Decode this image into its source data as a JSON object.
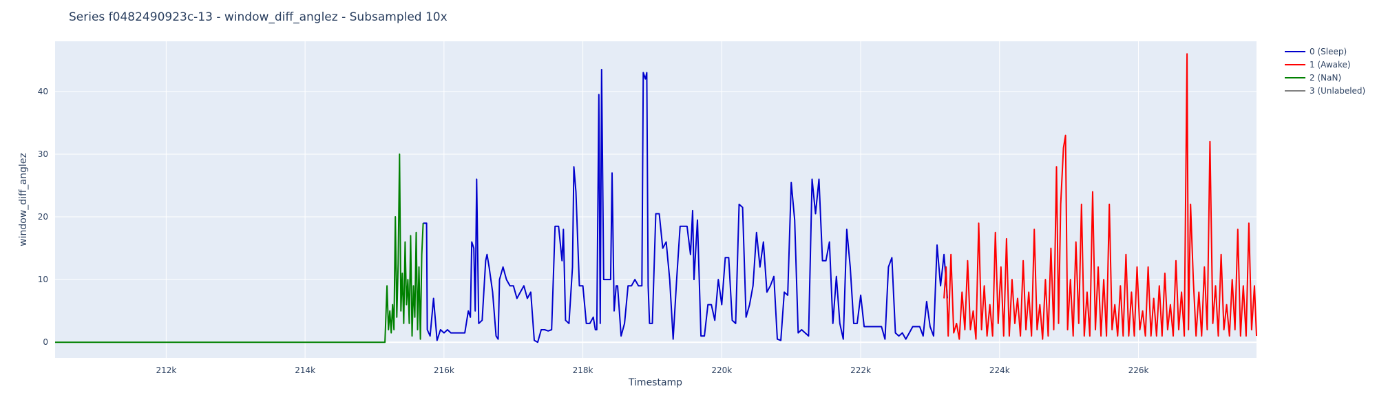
{
  "chart_data": {
    "type": "line",
    "title": "Series f0482490923c-13 - window_diff_anglez - Subsampled 10x",
    "xlabel": "Timestamp",
    "ylabel": "window_diff_anglez",
    "xlim": [
      210400,
      227700
    ],
    "ylim": [
      -2.5,
      48
    ],
    "x_ticks": [
      212000,
      214000,
      216000,
      218000,
      220000,
      222000,
      224000,
      226000
    ],
    "x_tick_labels": [
      "212k",
      "214k",
      "216k",
      "218k",
      "220k",
      "222k",
      "224k",
      "226k"
    ],
    "y_ticks": [
      0,
      10,
      20,
      30,
      40
    ],
    "y_tick_labels": [
      "0",
      "10",
      "20",
      "30",
      "40"
    ],
    "grid": true,
    "legend_position": "top-right",
    "series": [
      {
        "name": "0 (Sleep)",
        "color": "#0000cc",
        "points": [
          [
            215700,
            19
          ],
          [
            215750,
            19
          ],
          [
            215760,
            2
          ],
          [
            215800,
            1
          ],
          [
            215850,
            7
          ],
          [
            215900,
            0.3
          ],
          [
            215950,
            2
          ],
          [
            216000,
            1.5
          ],
          [
            216050,
            2
          ],
          [
            216100,
            1.5
          ],
          [
            216300,
            1.5
          ],
          [
            216350,
            5
          ],
          [
            216380,
            4
          ],
          [
            216400,
            16
          ],
          [
            216430,
            15
          ],
          [
            216450,
            5
          ],
          [
            216470,
            26
          ],
          [
            216500,
            3
          ],
          [
            216550,
            3.5
          ],
          [
            216600,
            13
          ],
          [
            216620,
            14
          ],
          [
            216650,
            12
          ],
          [
            216700,
            8
          ],
          [
            216750,
            1
          ],
          [
            216780,
            0.5
          ],
          [
            216800,
            10
          ],
          [
            216850,
            12
          ],
          [
            216900,
            10
          ],
          [
            216950,
            9
          ],
          [
            217000,
            9
          ],
          [
            217050,
            7
          ],
          [
            217100,
            8
          ],
          [
            217150,
            9
          ],
          [
            217200,
            7
          ],
          [
            217250,
            8
          ],
          [
            217300,
            0.3
          ],
          [
            217350,
            0
          ],
          [
            217400,
            2
          ],
          [
            217450,
            2
          ],
          [
            217500,
            1.8
          ],
          [
            217550,
            2
          ],
          [
            217600,
            18.5
          ],
          [
            217650,
            18.5
          ],
          [
            217700,
            13
          ],
          [
            217720,
            18
          ],
          [
            217750,
            3.5
          ],
          [
            217800,
            3
          ],
          [
            217850,
            12
          ],
          [
            217870,
            28
          ],
          [
            217900,
            24
          ],
          [
            217950,
            9
          ],
          [
            218000,
            9
          ],
          [
            218050,
            3
          ],
          [
            218100,
            3
          ],
          [
            218150,
            4
          ],
          [
            218180,
            2
          ],
          [
            218200,
            2
          ],
          [
            218230,
            39.5
          ],
          [
            218250,
            3
          ],
          [
            218270,
            43.5
          ],
          [
            218300,
            10
          ],
          [
            218350,
            10
          ],
          [
            218400,
            10
          ],
          [
            218420,
            27
          ],
          [
            218450,
            5
          ],
          [
            218480,
            9
          ],
          [
            218500,
            9
          ],
          [
            218550,
            1
          ],
          [
            218600,
            3
          ],
          [
            218650,
            9
          ],
          [
            218700,
            9
          ],
          [
            218750,
            10
          ],
          [
            218800,
            9
          ],
          [
            218850,
            9
          ],
          [
            218870,
            43
          ],
          [
            218900,
            42
          ],
          [
            218920,
            43
          ],
          [
            218940,
            9
          ],
          [
            218960,
            3
          ],
          [
            219000,
            3
          ],
          [
            219050,
            20.5
          ],
          [
            219100,
            20.5
          ],
          [
            219150,
            15
          ],
          [
            219200,
            16
          ],
          [
            219250,
            10
          ],
          [
            219300,
            0.5
          ],
          [
            219350,
            10
          ],
          [
            219400,
            18.5
          ],
          [
            219450,
            18.5
          ],
          [
            219500,
            18.5
          ],
          [
            219550,
            14
          ],
          [
            219580,
            21
          ],
          [
            219600,
            10
          ],
          [
            219650,
            19.5
          ],
          [
            219700,
            1
          ],
          [
            219750,
            1
          ],
          [
            219800,
            6
          ],
          [
            219850,
            6
          ],
          [
            219900,
            3.5
          ],
          [
            219950,
            10
          ],
          [
            220000,
            6
          ],
          [
            220050,
            13.5
          ],
          [
            220100,
            13.5
          ],
          [
            220150,
            3.5
          ],
          [
            220200,
            3
          ],
          [
            220250,
            22
          ],
          [
            220300,
            21.5
          ],
          [
            220350,
            4
          ],
          [
            220400,
            6
          ],
          [
            220450,
            9
          ],
          [
            220500,
            17.5
          ],
          [
            220550,
            12
          ],
          [
            220600,
            16
          ],
          [
            220650,
            8
          ],
          [
            220700,
            9
          ],
          [
            220750,
            10.5
          ],
          [
            220800,
            0.5
          ],
          [
            220850,
            0.3
          ],
          [
            220900,
            8
          ],
          [
            220950,
            7.5
          ],
          [
            221000,
            25.5
          ],
          [
            221050,
            19.5
          ],
          [
            221100,
            1.5
          ],
          [
            221150,
            2
          ],
          [
            221200,
            1.5
          ],
          [
            221250,
            1
          ],
          [
            221300,
            26
          ],
          [
            221350,
            20.5
          ],
          [
            221400,
            26
          ],
          [
            221450,
            13
          ],
          [
            221500,
            13
          ],
          [
            221550,
            16
          ],
          [
            221600,
            3
          ],
          [
            221650,
            10.5
          ],
          [
            221700,
            3
          ],
          [
            221750,
            0.5
          ],
          [
            221800,
            18
          ],
          [
            221850,
            12
          ],
          [
            221900,
            3
          ],
          [
            221950,
            3
          ],
          [
            222000,
            7.5
          ],
          [
            222050,
            2.5
          ],
          [
            222100,
            2.5
          ],
          [
            222150,
            2.5
          ],
          [
            222200,
            2.5
          ],
          [
            222250,
            2.5
          ],
          [
            222300,
            2.5
          ],
          [
            222350,
            0.5
          ],
          [
            222400,
            12
          ],
          [
            222450,
            13.5
          ],
          [
            222500,
            1.5
          ],
          [
            222550,
            1
          ],
          [
            222600,
            1.5
          ],
          [
            222650,
            0.5
          ],
          [
            222700,
            1.5
          ],
          [
            222750,
            2.5
          ],
          [
            222800,
            2.5
          ],
          [
            222850,
            2.5
          ],
          [
            222900,
            1
          ],
          [
            222950,
            6.5
          ],
          [
            223000,
            2.5
          ],
          [
            223050,
            1
          ],
          [
            223100,
            15.5
          ],
          [
            223150,
            9
          ],
          [
            223200,
            14
          ],
          [
            223250,
            7
          ]
        ]
      },
      {
        "name": "1 (Awake)",
        "color": "#ff0000",
        "points": [
          [
            223200,
            7
          ],
          [
            223230,
            12
          ],
          [
            223260,
            1
          ],
          [
            223300,
            14
          ],
          [
            223340,
            1.5
          ],
          [
            223380,
            3
          ],
          [
            223420,
            0.5
          ],
          [
            223460,
            8
          ],
          [
            223500,
            2
          ],
          [
            223540,
            13
          ],
          [
            223580,
            2
          ],
          [
            223620,
            5
          ],
          [
            223660,
            0.5
          ],
          [
            223700,
            19
          ],
          [
            223740,
            2
          ],
          [
            223780,
            9
          ],
          [
            223820,
            1
          ],
          [
            223860,
            6
          ],
          [
            223900,
            1
          ],
          [
            223940,
            17.5
          ],
          [
            223980,
            3
          ],
          [
            224020,
            12
          ],
          [
            224060,
            1
          ],
          [
            224100,
            16.5
          ],
          [
            224140,
            1
          ],
          [
            224180,
            10
          ],
          [
            224220,
            3
          ],
          [
            224260,
            7
          ],
          [
            224300,
            1
          ],
          [
            224340,
            13
          ],
          [
            224380,
            2
          ],
          [
            224420,
            8
          ],
          [
            224460,
            1
          ],
          [
            224500,
            18
          ],
          [
            224540,
            2
          ],
          [
            224580,
            6
          ],
          [
            224620,
            0.5
          ],
          [
            224660,
            10
          ],
          [
            224700,
            1
          ],
          [
            224740,
            15
          ],
          [
            224780,
            2
          ],
          [
            224820,
            28
          ],
          [
            224850,
            3
          ],
          [
            224880,
            22
          ],
          [
            224920,
            31
          ],
          [
            224950,
            33
          ],
          [
            224980,
            2
          ],
          [
            225020,
            10
          ],
          [
            225060,
            1
          ],
          [
            225100,
            16
          ],
          [
            225140,
            3
          ],
          [
            225180,
            22
          ],
          [
            225220,
            1
          ],
          [
            225260,
            8
          ],
          [
            225300,
            1
          ],
          [
            225340,
            24
          ],
          [
            225380,
            2
          ],
          [
            225420,
            12
          ],
          [
            225460,
            1
          ],
          [
            225500,
            10
          ],
          [
            225540,
            1
          ],
          [
            225580,
            22
          ],
          [
            225620,
            2
          ],
          [
            225660,
            6
          ],
          [
            225700,
            1
          ],
          [
            225740,
            9
          ],
          [
            225780,
            1
          ],
          [
            225820,
            14
          ],
          [
            225860,
            1
          ],
          [
            225900,
            8
          ],
          [
            225940,
            1
          ],
          [
            225980,
            12
          ],
          [
            226020,
            2
          ],
          [
            226060,
            5
          ],
          [
            226100,
            1
          ],
          [
            226140,
            12
          ],
          [
            226180,
            1
          ],
          [
            226220,
            7
          ],
          [
            226260,
            1
          ],
          [
            226300,
            9
          ],
          [
            226340,
            1
          ],
          [
            226380,
            11
          ],
          [
            226420,
            2
          ],
          [
            226460,
            6
          ],
          [
            226500,
            1
          ],
          [
            226540,
            13
          ],
          [
            226580,
            2
          ],
          [
            226620,
            8
          ],
          [
            226660,
            1
          ],
          [
            226700,
            46
          ],
          [
            226720,
            2
          ],
          [
            226750,
            22
          ],
          [
            226790,
            10
          ],
          [
            226830,
            1
          ],
          [
            226870,
            8
          ],
          [
            226910,
            1
          ],
          [
            226950,
            12
          ],
          [
            226990,
            2
          ],
          [
            227030,
            32
          ],
          [
            227070,
            3
          ],
          [
            227110,
            9
          ],
          [
            227150,
            1
          ],
          [
            227190,
            14
          ],
          [
            227230,
            2
          ],
          [
            227270,
            6
          ],
          [
            227310,
            1
          ],
          [
            227350,
            10
          ],
          [
            227390,
            2
          ],
          [
            227430,
            18
          ],
          [
            227470,
            1
          ],
          [
            227510,
            9
          ],
          [
            227550,
            1
          ],
          [
            227590,
            19
          ],
          [
            227630,
            2
          ],
          [
            227670,
            9
          ],
          [
            227700,
            1
          ]
        ]
      },
      {
        "name": "2 (NaN)",
        "color": "#008000",
        "points": [
          [
            210400,
            0
          ],
          [
            215150,
            0
          ],
          [
            215180,
            9
          ],
          [
            215200,
            2
          ],
          [
            215220,
            5
          ],
          [
            215240,
            1.5
          ],
          [
            215260,
            6
          ],
          [
            215280,
            2
          ],
          [
            215300,
            20
          ],
          [
            215320,
            4
          ],
          [
            215340,
            12.5
          ],
          [
            215360,
            30
          ],
          [
            215380,
            5
          ],
          [
            215400,
            11
          ],
          [
            215420,
            3
          ],
          [
            215440,
            16
          ],
          [
            215460,
            6
          ],
          [
            215480,
            10
          ],
          [
            215500,
            3
          ],
          [
            215520,
            17
          ],
          [
            215540,
            1
          ],
          [
            215560,
            9
          ],
          [
            215580,
            4
          ],
          [
            215600,
            17.5
          ],
          [
            215620,
            2
          ],
          [
            215640,
            12
          ],
          [
            215660,
            0.5
          ],
          [
            215680,
            14
          ],
          [
            215700,
            19
          ]
        ]
      },
      {
        "name": "3 (Unlabeled)",
        "color": "#808080",
        "points": []
      }
    ]
  }
}
